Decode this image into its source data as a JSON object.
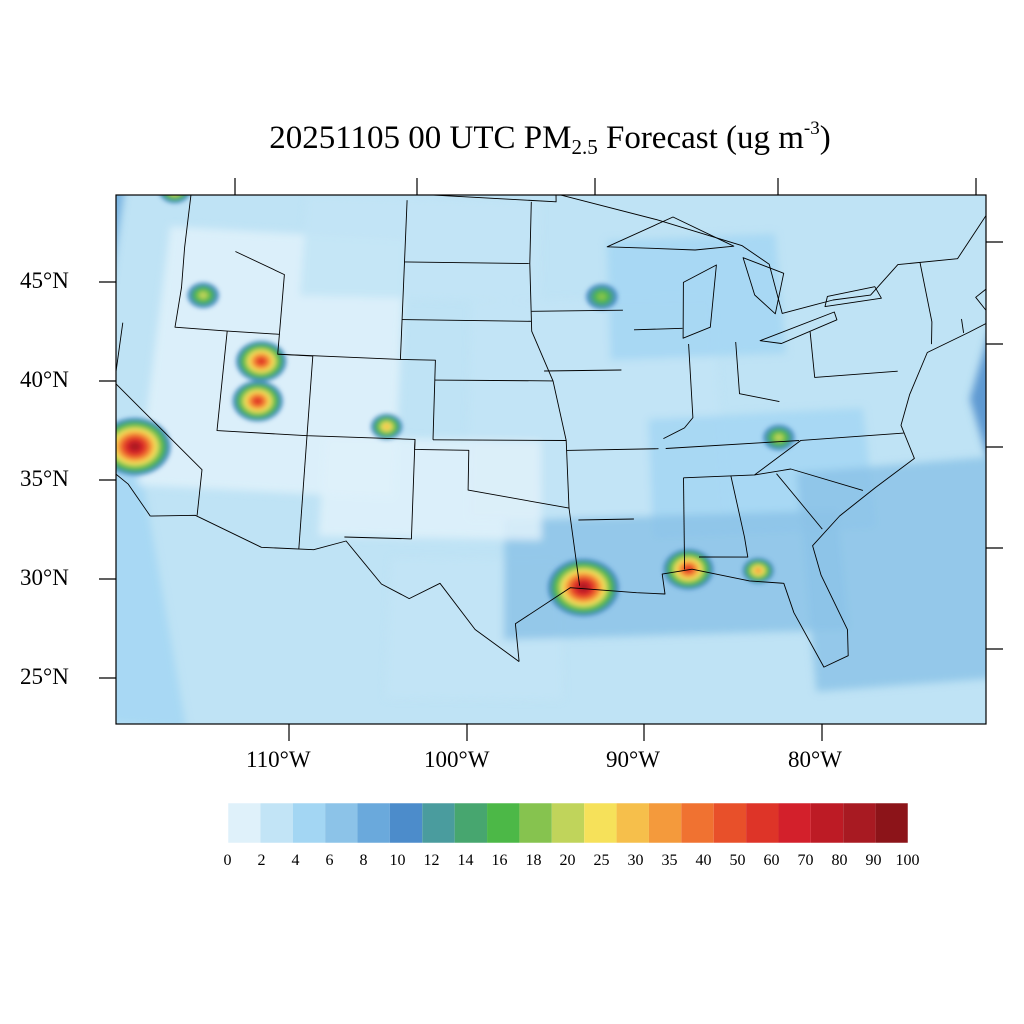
{
  "title": {
    "prefix": "20251105 00 UTC PM",
    "sub": "2.5",
    "mid": " Forecast (ug m",
    "sup": "-3",
    "suffix": ")"
  },
  "axes": {
    "lat_labels": [
      "45°N",
      "40°N",
      "35°N",
      "30°N",
      "25°N"
    ],
    "lon_labels": [
      "110°W",
      "100°W",
      "90°W",
      "80°W"
    ]
  },
  "colorbar": {
    "labels": [
      "0",
      "2",
      "4",
      "6",
      "8",
      "10",
      "12",
      "14",
      "16",
      "18",
      "20",
      "25",
      "30",
      "35",
      "40",
      "50",
      "60",
      "70",
      "80",
      "90",
      "100"
    ],
    "colors": [
      "#dff1fa",
      "#c2e4f6",
      "#a3d6f3",
      "#8cc3e8",
      "#6aa9dc",
      "#4c8ccb",
      "#4a9c9e",
      "#47a66f",
      "#4cb847",
      "#86c34f",
      "#c0d45b",
      "#f6e15a",
      "#f6bf4b",
      "#f49a3c",
      "#f07231",
      "#e8502a",
      "#de3428",
      "#d3202b",
      "#bd1b25",
      "#a81a22",
      "#8c1419"
    ]
  },
  "map_features": {
    "hotspots": [
      {
        "name": "Louisiana-Texas Gulf plume",
        "lon": -93.8,
        "lat": 29.6,
        "level": 90
      },
      {
        "name": "Mississippi-Alabama cluster",
        "lon": -88.2,
        "lat": 30.4,
        "level": 60
      },
      {
        "name": "Georgia cluster",
        "lon": -84.5,
        "lat": 30.2,
        "level": 35
      },
      {
        "name": "Southern Sierra Nevada fire",
        "lon": -118.4,
        "lat": 35.9,
        "level": 90
      },
      {
        "name": "Northern Utah",
        "lon": -111.9,
        "lat": 40.6,
        "level": 60
      },
      {
        "name": "Utah central",
        "lon": -111.9,
        "lat": 38.6,
        "level": 60
      },
      {
        "name": "Colorado Front Range",
        "lon": -104.6,
        "lat": 37.6,
        "level": 30
      },
      {
        "name": "Idaho",
        "lon": -115.6,
        "lat": 43.7,
        "level": 20
      },
      {
        "name": "Northern Washington/BC",
        "lon": -118.0,
        "lat": 48.8,
        "level": 30
      },
      {
        "name": "Kentucky-Virginia",
        "lon": -82.8,
        "lat": 36.8,
        "level": 20
      },
      {
        "name": "Wisconsin",
        "lon": -92.4,
        "lat": 44.2,
        "level": 18
      }
    ]
  }
}
